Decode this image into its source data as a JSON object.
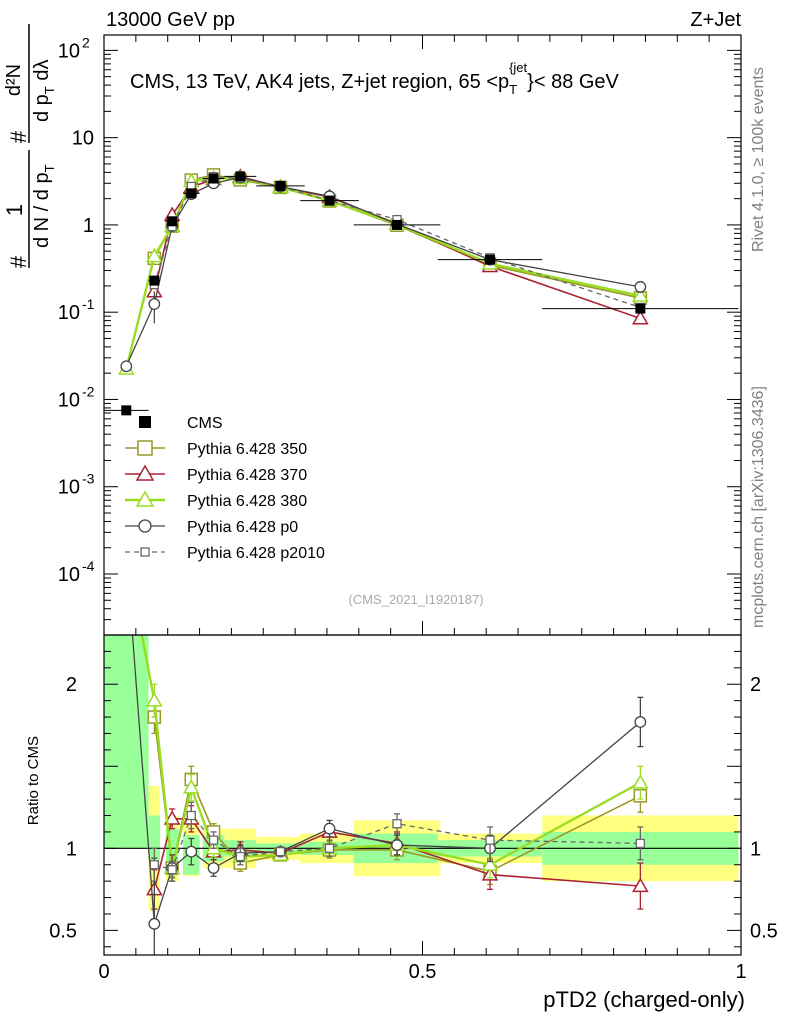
{
  "header": {
    "left": "13000 GeV pp",
    "right": "Z+Jet"
  },
  "side": {
    "rivet": "Rivet 4.1.0, ≥ 100k events",
    "mcplots": "mcplots.cern.ch [arXiv:1306.3436]"
  },
  "chart_data": {
    "type": "line",
    "title": "CMS, 13 TeV, AK4 jets, Z+jet region, 65 <p_T^{jet}< 88 GeV",
    "title_parts": {
      "main": "CMS, 13 TeV, AK4 jets, Z+jet region, 65 <p",
      "sub": "T",
      "sup": "{jet",
      "tail": "}< 88 GeV"
    },
    "watermark": "(CMS_2021_I1920187)",
    "xlabel": "pTD2 (charged-only)",
    "ylabel_parts": {
      "num": "1",
      "den_a": "d N / d p",
      "den_sub": "T",
      "hash": "#",
      "num2": "d²N",
      "den2_a": "d p",
      "den2_sub": "T",
      "den2_b": " dλ"
    },
    "ratio_ylabel": "Ratio to CMS",
    "xlim": [
      0,
      1
    ],
    "ylim_log": [
      2e-05,
      150
    ],
    "ratio_ylim": [
      0.35,
      2.3
    ],
    "x_ticks": [
      0,
      0.5,
      1
    ],
    "x_tick_labels": [
      "0",
      "0.5",
      "1"
    ],
    "y_ticks": [
      {
        "v": 100,
        "base": "10",
        "exp": "2"
      },
      {
        "v": 10,
        "base": "10",
        "exp": ""
      },
      {
        "v": 1,
        "base": "1",
        "exp": ""
      },
      {
        "v": 0.1,
        "base": "10",
        "exp": "-1"
      },
      {
        "v": 0.01,
        "base": "10",
        "exp": "-2"
      },
      {
        "v": 0.001,
        "base": "10",
        "exp": "-3"
      },
      {
        "v": 0.0001,
        "base": "10",
        "exp": "-4"
      }
    ],
    "ratio_ticks": [
      {
        "v": 2,
        "label": "2"
      },
      {
        "v": 1,
        "label": "1"
      },
      {
        "v": 0.5,
        "label": "0.5"
      }
    ],
    "data": {
      "name": "CMS",
      "x": [
        0.035,
        0.079,
        0.107,
        0.137,
        0.172,
        0.214,
        0.277,
        0.354,
        0.46,
        0.606,
        0.842
      ],
      "y": [
        0.0075,
        0.23,
        1.1,
        2.3,
        3.4,
        3.6,
        2.8,
        1.9,
        1.0,
        0.4,
        0.11
      ],
      "xerr_lo": [
        0.035,
        0.009,
        0.01,
        0.013,
        0.017,
        0.025,
        0.038,
        0.046,
        0.068,
        0.082,
        0.154
      ],
      "xerr_hi": [
        0.035,
        0.009,
        0.01,
        0.013,
        0.017,
        0.025,
        0.038,
        0.046,
        0.068,
        0.082,
        0.154
      ],
      "stat_band": [
        [
          0,
          3.0
        ],
        [
          0.07,
          0.2
        ],
        [
          0.12,
          0.12
        ],
        [
          0.16,
          0.08
        ],
        [
          0.08,
          0.08
        ],
        [
          0.05,
          0.05
        ],
        [
          0.03,
          0.03
        ],
        [
          0.04,
          0.04
        ],
        [
          0.09,
          0.09
        ],
        [
          0.05,
          0.05
        ],
        [
          0.1,
          0.1
        ]
      ],
      "total_band": [
        [
          0,
          3.0
        ],
        [
          0.38,
          0.38
        ],
        [
          0.2,
          0.2
        ],
        [
          0.17,
          0.17
        ],
        [
          0.12,
          0.12
        ],
        [
          0.12,
          0.12
        ],
        [
          0.07,
          0.07
        ],
        [
          0.09,
          0.09
        ],
        [
          0.17,
          0.17
        ],
        [
          0.09,
          0.09
        ],
        [
          0.2,
          0.2
        ]
      ]
    },
    "series": [
      {
        "name": "Pythia 6.428 350",
        "color": "#999926",
        "marker": "square",
        "dash": false,
        "width": 1.6,
        "ratio": [
          0.0,
          1.8,
          0.88,
          1.42,
          1.1,
          0.91,
          0.96,
          0.99,
          0.99,
          0.86,
          1.32
        ],
        "rerr": [
          0,
          0.1,
          0.05,
          0.08,
          0.05,
          0.05,
          0.03,
          0.05,
          0.06,
          0.08,
          0.1
        ]
      },
      {
        "name": "Pythia 6.428 370",
        "color": "#aa2233",
        "marker": "triangle",
        "dash": false,
        "width": 1.6,
        "ratio": [
          0.0,
          0.75,
          1.18,
          1.18,
          0.98,
          0.99,
          0.97,
          1.1,
          1.03,
          0.84,
          0.77
        ],
        "rerr": [
          0,
          0.12,
          0.06,
          0.08,
          0.05,
          0.05,
          0.03,
          0.05,
          0.07,
          0.09,
          0.14
        ]
      },
      {
        "name": "Pythia 6.428 380",
        "color": "#99dd22",
        "marker": "triangle",
        "dash": false,
        "width": 2.4,
        "ratio": [
          3.0,
          1.9,
          0.88,
          1.37,
          1.0,
          0.95,
          0.96,
          1.0,
          1.02,
          0.9,
          1.4
        ],
        "rerr": [
          0,
          0.1,
          0.05,
          0.08,
          0.05,
          0.05,
          0.03,
          0.05,
          0.06,
          0.08,
          0.1
        ]
      },
      {
        "name": "Pythia 6.428 p0",
        "color": "#444444",
        "marker": "circle",
        "dash": false,
        "width": 1.3,
        "ratio": [
          3.2,
          0.54,
          0.88,
          0.98,
          0.88,
          0.97,
          0.98,
          1.12,
          1.02,
          1.0,
          1.77
        ],
        "rerr": [
          0,
          0.4,
          0.08,
          0.08,
          0.05,
          0.05,
          0.03,
          0.05,
          0.06,
          0.08,
          0.15
        ]
      },
      {
        "name": "Pythia 6.428 p2010",
        "color": "#666666",
        "marker": "square_small",
        "dash": true,
        "width": 1.3,
        "ratio": [
          0.0,
          0.9,
          0.87,
          1.2,
          1.05,
          0.95,
          0.98,
          1.0,
          1.15,
          1.05,
          1.03
        ],
        "rerr": [
          0,
          0.1,
          0.05,
          0.08,
          0.05,
          0.05,
          0.03,
          0.05,
          0.06,
          0.08,
          0.1
        ]
      }
    ]
  }
}
